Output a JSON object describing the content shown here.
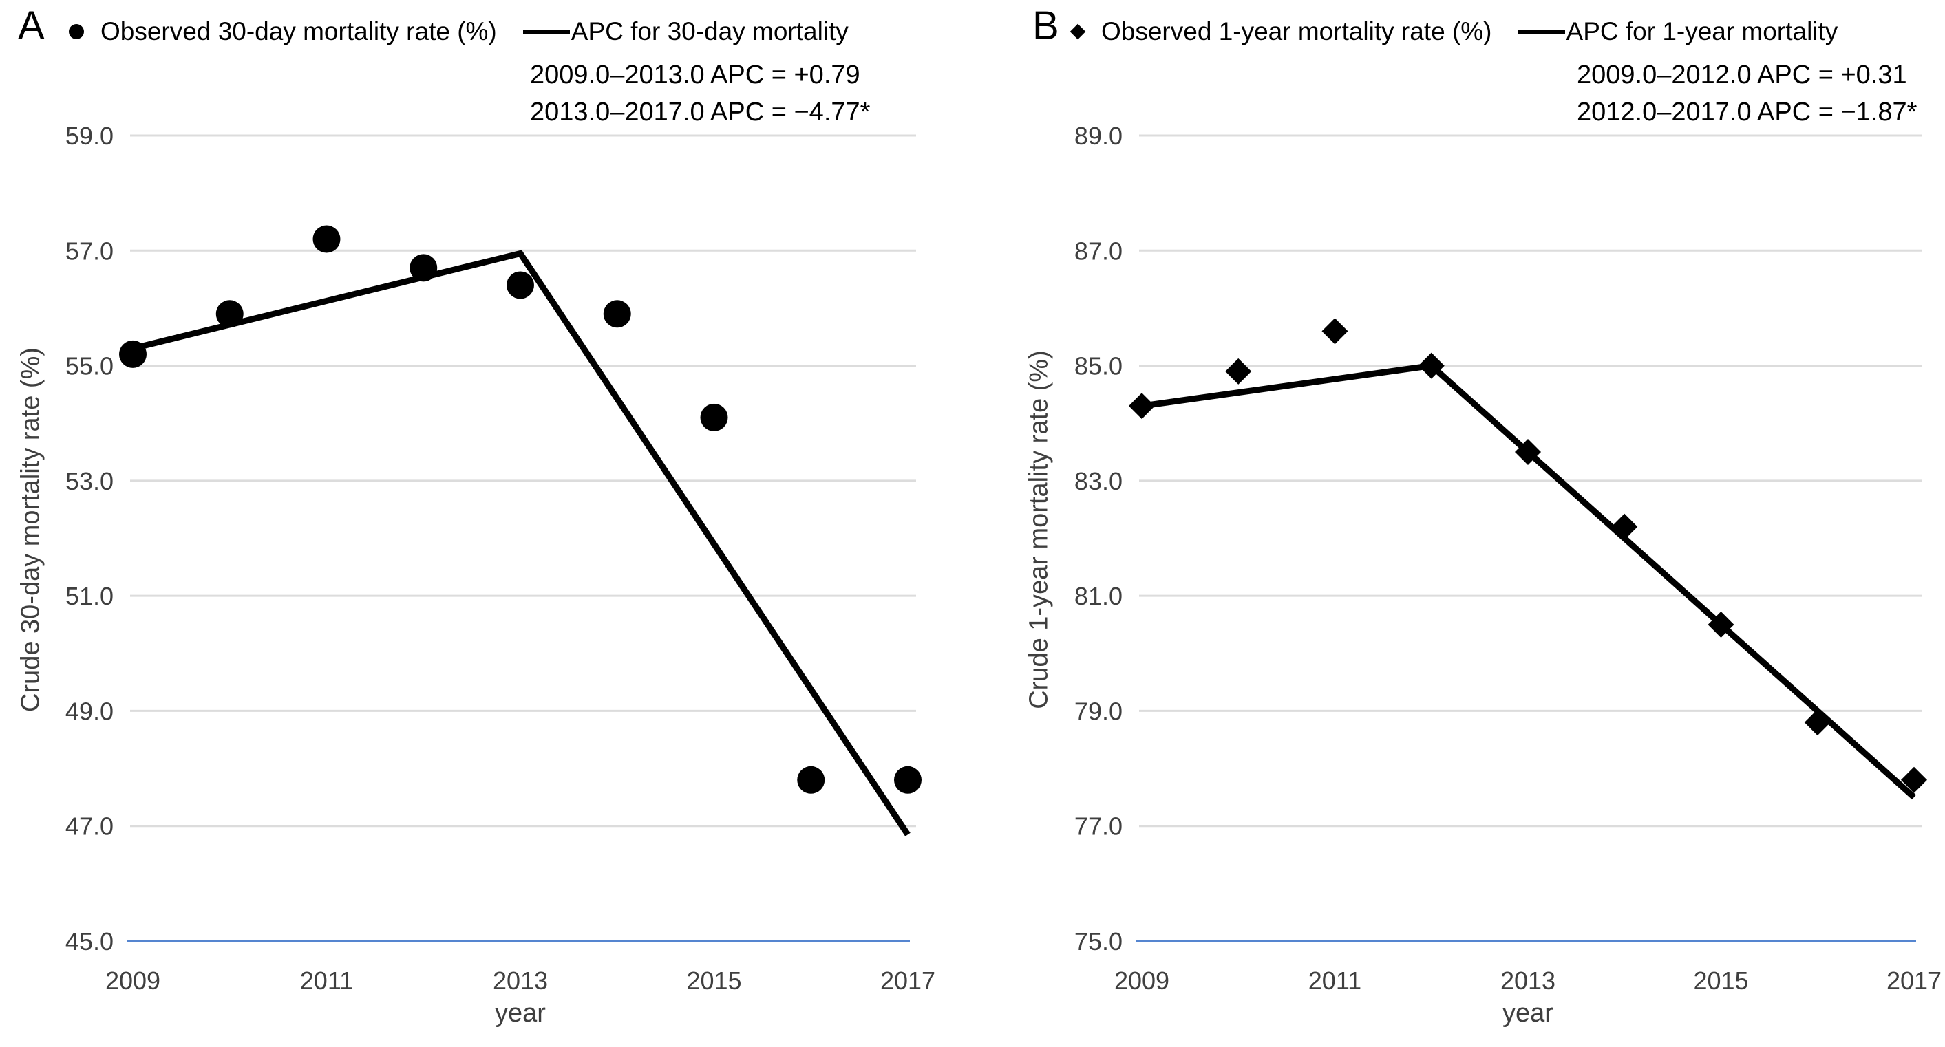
{
  "page": {
    "background_color": "#ffffff",
    "description_colors": {
      "gridline": "#dcdcdc",
      "baseline_blue": "#5585d0",
      "marker_and_trend": "#000000",
      "tick_text": "#3f3f3f",
      "label_text": "#000000"
    }
  },
  "chart_data": [
    {
      "type": "scatter",
      "panel_label": "A",
      "legend": {
        "observed_label": "Observed 30-day mortality rate (%)",
        "observed_marker": "circle-icon",
        "apc_label": "APC for 30-day mortality",
        "apc_marker": "line-icon"
      },
      "annotations": [
        "2009.0–2013.0 APC = +0.79",
        "2013.0–2017.0 APC = −4.77*"
      ],
      "ylabel": "Crude 30-day mortality rate (%)",
      "xlabel": "year",
      "marker": "circle",
      "ylim": [
        45.0,
        59.0
      ],
      "ytick_labels": [
        "59.0",
        "57.0",
        "55.0",
        "53.0",
        "51.0",
        "49.0",
        "47.0",
        "45.0"
      ],
      "xlim": [
        2009,
        2017
      ],
      "xticks": [
        2009,
        2011,
        2013,
        2015,
        2017
      ],
      "grid": "horizontal",
      "legend_position": "top",
      "x": [
        2009,
        2010,
        2011,
        2012,
        2013,
        2014,
        2015,
        2016,
        2017
      ],
      "observed_values": [
        55.2,
        55.9,
        57.2,
        56.7,
        56.4,
        55.9,
        54.1,
        47.8,
        47.8
      ],
      "apc_line_points": [
        [
          2009,
          55.3
        ],
        [
          2013,
          56.95
        ],
        [
          2017,
          46.85
        ]
      ]
    },
    {
      "type": "scatter",
      "panel_label": "B",
      "legend": {
        "observed_label": "Observed 1-year mortality rate (%)",
        "observed_marker": "diamond-icon",
        "apc_label": "APC for 1-year mortality",
        "apc_marker": "line-icon"
      },
      "annotations": [
        "2009.0–2012.0 APC = +0.31",
        "2012.0–2017.0 APC = −1.87*"
      ],
      "ylabel": "Crude 1-year mortality rate (%)",
      "xlabel": "year",
      "marker": "diamond",
      "ylim": [
        75.0,
        89.0
      ],
      "ytick_labels": [
        "89.0",
        "87.0",
        "85.0",
        "83.0",
        "81.0",
        "79.0",
        "77.0",
        "75.0"
      ],
      "xlim": [
        2009,
        2017
      ],
      "xticks": [
        2009,
        2011,
        2013,
        2015,
        2017
      ],
      "grid": "horizontal",
      "legend_position": "top",
      "x": [
        2009,
        2010,
        2011,
        2012,
        2013,
        2014,
        2015,
        2016,
        2017
      ],
      "observed_values": [
        84.3,
        84.9,
        85.6,
        85.0,
        83.5,
        82.2,
        80.5,
        78.8,
        77.8
      ],
      "apc_line_points": [
        [
          2009,
          84.3
        ],
        [
          2012,
          85.0
        ],
        [
          2017,
          77.5
        ]
      ]
    }
  ]
}
